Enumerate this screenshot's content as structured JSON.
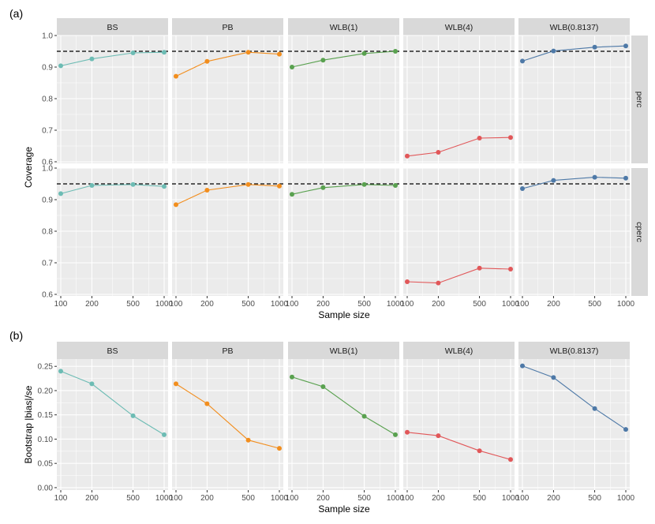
{
  "chart_data": [
    {
      "type": "line",
      "panel_label": "(a)",
      "facets": [
        "BS",
        "PB",
        "WLB(1)",
        "WLB(4)",
        "WLB(0.8137)"
      ],
      "rows": [
        "perc",
        "cperc"
      ],
      "x": [
        100,
        200,
        500,
        1000
      ],
      "x_scale": "log",
      "x_tick_labels": [
        "100",
        "200",
        "500",
        "1000"
      ],
      "xlabel": "Sample size",
      "ylabel": "Coverage",
      "ylim": [
        0.595,
        1.0
      ],
      "y_ticks": [
        0.6,
        0.7,
        0.8,
        0.9,
        1.0
      ],
      "y_tick_labels": [
        "0.6",
        "0.7",
        "0.8",
        "0.9",
        "1.0"
      ],
      "reference_line": 0.95,
      "grid": true,
      "series": [
        {
          "facet": "BS",
          "row": "perc",
          "values": [
            0.904,
            0.926,
            0.945,
            0.947
          ]
        },
        {
          "facet": "PB",
          "row": "perc",
          "values": [
            0.871,
            0.918,
            0.947,
            0.941
          ]
        },
        {
          "facet": "WLB(1)",
          "row": "perc",
          "values": [
            0.9,
            0.922,
            0.943,
            0.95
          ]
        },
        {
          "facet": "WLB(4)",
          "row": "perc",
          "values": [
            0.618,
            0.63,
            0.675,
            0.677
          ]
        },
        {
          "facet": "WLB(0.8137)",
          "row": "perc",
          "values": [
            0.919,
            0.951,
            0.963,
            0.967
          ]
        },
        {
          "facet": "BS",
          "row": "cperc",
          "values": [
            0.919,
            0.945,
            0.948,
            0.942
          ]
        },
        {
          "facet": "PB",
          "row": "cperc",
          "values": [
            0.884,
            0.93,
            0.948,
            0.943
          ]
        },
        {
          "facet": "WLB(1)",
          "row": "cperc",
          "values": [
            0.917,
            0.938,
            0.948,
            0.945
          ]
        },
        {
          "facet": "WLB(4)",
          "row": "cperc",
          "values": [
            0.64,
            0.636,
            0.683,
            0.68
          ]
        },
        {
          "facet": "WLB(0.8137)",
          "row": "cperc",
          "values": [
            0.935,
            0.961,
            0.971,
            0.968
          ]
        }
      ]
    },
    {
      "type": "line",
      "panel_label": "(b)",
      "facets": [
        "BS",
        "PB",
        "WLB(1)",
        "WLB(4)",
        "WLB(0.8137)"
      ],
      "x": [
        100,
        200,
        500,
        1000
      ],
      "x_scale": "log",
      "x_tick_labels": [
        "100",
        "200",
        "500",
        "1000"
      ],
      "xlabel": "Sample size",
      "ylabel": "Bootstrap |bias|/se",
      "ylim": [
        -0.005,
        0.265
      ],
      "y_ticks": [
        0.0,
        0.05,
        0.1,
        0.15,
        0.2,
        0.25
      ],
      "y_tick_labels": [
        "0.00",
        "0.05",
        "0.10",
        "0.15",
        "0.20",
        "0.25"
      ],
      "grid": true,
      "series": [
        {
          "facet": "BS",
          "values": [
            0.24,
            0.214,
            0.148,
            0.109
          ]
        },
        {
          "facet": "PB",
          "values": [
            0.214,
            0.173,
            0.098,
            0.081
          ]
        },
        {
          "facet": "WLB(1)",
          "values": [
            0.228,
            0.208,
            0.147,
            0.109
          ]
        },
        {
          "facet": "WLB(4)",
          "values": [
            0.114,
            0.107,
            0.076,
            0.058
          ]
        },
        {
          "facet": "WLB(0.8137)",
          "values": [
            0.251,
            0.227,
            0.163,
            0.12
          ]
        }
      ]
    }
  ],
  "colors": {
    "BS": "#6dbcb4",
    "PB": "#f28e1e",
    "WLB(1)": "#59a14f",
    "WLB(4)": "#e15759",
    "WLB(0.8137)": "#4e79a7",
    "panel_bg": "#ebebeb",
    "strip_bg": "#d9d9d9",
    "grid": "#ffffff",
    "reference_line": "#000000"
  }
}
